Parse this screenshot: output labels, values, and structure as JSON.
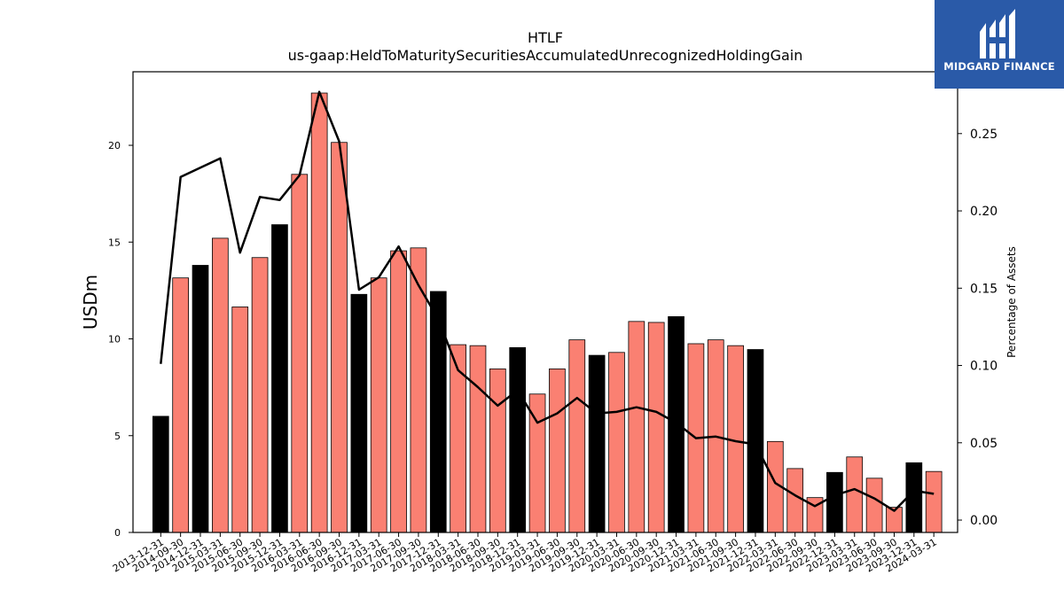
{
  "chart_data": {
    "type": "bar",
    "title": "HTLF",
    "subtitle": "us-gaap:HeldToMaturitySecuritiesAccumulatedUnrecognizedHoldingGain",
    "ylabel": "USDm",
    "y2label": "Percentage of Assets",
    "ylim": [
      0,
      23.8
    ],
    "y2lim": [
      -0.008,
      0.29
    ],
    "yticks": [
      "0",
      "5",
      "10",
      "15",
      "20"
    ],
    "y2ticks": [
      "0.00",
      "0.05",
      "0.10",
      "0.15",
      "0.20",
      "0.25"
    ],
    "categories": [
      "2013-12-31",
      "2014-09-30",
      "2014-12-31",
      "2015-03-31",
      "2015-06-30",
      "2015-09-30",
      "2015-12-31",
      "2016-03-31",
      "2016-06-30",
      "2016-09-30",
      "2016-12-31",
      "2017-03-31",
      "2017-06-30",
      "2017-09-30",
      "2017-12-31",
      "2018-03-31",
      "2018-06-30",
      "2018-09-30",
      "2018-12-31",
      "2019-03-31",
      "2019-06-30",
      "2019-09-30",
      "2019-12-31",
      "2020-03-31",
      "2020-06-30",
      "2020-09-30",
      "2020-12-31",
      "2021-03-31",
      "2021-06-30",
      "2021-09-30",
      "2021-12-31",
      "2022-03-31",
      "2022-06-30",
      "2022-09-30",
      "2022-12-31",
      "2023-03-31",
      "2023-06-30",
      "2023-09-30",
      "2023-12-31",
      "2024-03-31"
    ],
    "series": [
      {
        "type": "bar",
        "values": [
          6.0,
          13.15,
          13.8,
          15.2,
          11.65,
          14.2,
          15.9,
          18.5,
          22.7,
          20.15,
          12.3,
          13.15,
          14.55,
          14.7,
          12.45,
          9.7,
          9.65,
          8.45,
          9.55,
          7.15,
          8.45,
          9.95,
          9.15,
          9.3,
          10.9,
          10.85,
          11.15,
          9.75,
          9.95,
          9.65,
          9.45,
          4.7,
          3.3,
          1.8,
          3.1,
          3.9,
          2.8,
          1.3,
          3.6,
          3.15
        ],
        "colors": [
          "#000000",
          "#fa8072",
          "#000000",
          "#fa8072",
          "#fa8072",
          "#fa8072",
          "#000000",
          "#fa8072",
          "#fa8072",
          "#fa8072",
          "#000000",
          "#fa8072",
          "#fa8072",
          "#fa8072",
          "#000000",
          "#fa8072",
          "#fa8072",
          "#fa8072",
          "#000000",
          "#fa8072",
          "#fa8072",
          "#fa8072",
          "#000000",
          "#fa8072",
          "#fa8072",
          "#fa8072",
          "#000000",
          "#fa8072",
          "#fa8072",
          "#fa8072",
          "#000000",
          "#fa8072",
          "#fa8072",
          "#fa8072",
          "#000000",
          "#fa8072",
          "#fa8072",
          "#fa8072",
          "#000000",
          "#fa8072"
        ]
      },
      {
        "type": "line",
        "axis": "right",
        "color": "#000000",
        "values": [
          0.101,
          0.222,
          0.228,
          0.234,
          0.173,
          0.209,
          0.207,
          0.223,
          0.277,
          0.245,
          0.149,
          0.157,
          0.177,
          0.152,
          0.13,
          0.097,
          0.086,
          0.074,
          0.084,
          0.063,
          0.069,
          0.079,
          0.069,
          0.07,
          0.073,
          0.07,
          0.063,
          0.053,
          0.054,
          0.051,
          0.049,
          0.024,
          0.016,
          0.009,
          0.016,
          0.02,
          0.014,
          0.006,
          0.019,
          0.017
        ]
      }
    ],
    "grid": false,
    "legend": "none"
  },
  "logo": {
    "text": "MIDGARD FINANCE",
    "background": "#2a5aa8"
  }
}
